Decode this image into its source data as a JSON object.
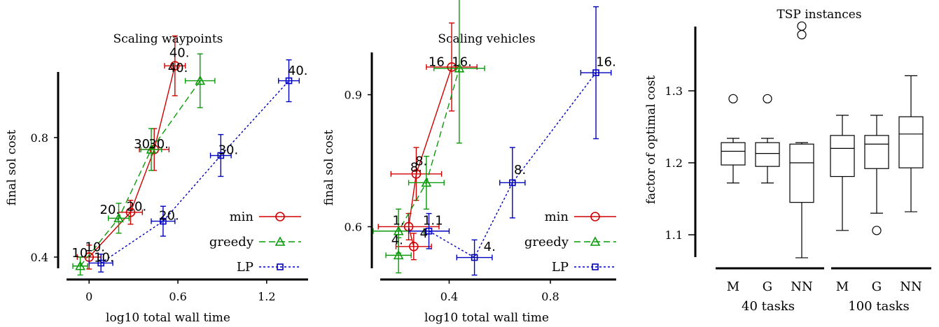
{
  "chart_data": [
    {
      "type": "scatter",
      "title": "Scaling waypoints",
      "xlabel": "log10 total wall time",
      "ylabel": "final sol cost",
      "xticks": [
        "0",
        "0.6",
        "1.2"
      ],
      "yticks": [
        "0.4",
        "0.8"
      ],
      "legend_position": "bottom-right",
      "series": [
        {
          "name": "min",
          "color": "#d00000",
          "marker": "circle",
          "line": "solid",
          "points": [
            {
              "x": 0.0,
              "y": 0.4,
              "xerr": 0.08,
              "yerr": 0.04,
              "label": "10."
            },
            {
              "x": 0.28,
              "y": 0.55,
              "xerr": 0.08,
              "yerr": 0.04,
              "label": "20."
            },
            {
              "x": 0.44,
              "y": 0.76,
              "xerr": 0.1,
              "yerr": 0.07,
              "label": "30."
            },
            {
              "x": 0.58,
              "y": 1.04,
              "xerr": 0.07,
              "yerr": 0.1,
              "label": "40."
            }
          ]
        },
        {
          "name": "greedy",
          "color": "#0a9a0a",
          "marker": "triangle",
          "line": "dashed",
          "points": [
            {
              "x": -0.06,
              "y": 0.37,
              "xerr": 0.05,
              "yerr": 0.03,
              "label": ""
            },
            {
              "x": 0.2,
              "y": 0.53,
              "xerr": 0.07,
              "yerr": 0.05,
              "label": ""
            },
            {
              "x": 0.42,
              "y": 0.76,
              "xerr": 0.07,
              "yerr": 0.07,
              "label": ""
            },
            {
              "x": 0.75,
              "y": 0.99,
              "xerr": 0.1,
              "yerr": 0.09,
              "label": ""
            }
          ]
        },
        {
          "name": "LP",
          "color": "#0000c0",
          "marker": "square",
          "line": "dotted",
          "points": [
            {
              "x": 0.08,
              "y": 0.38,
              "xerr": 0.08,
              "yerr": 0.03,
              "label": ""
            },
            {
              "x": 0.5,
              "y": 0.52,
              "xerr": 0.08,
              "yerr": 0.05,
              "label": ""
            },
            {
              "x": 0.89,
              "y": 0.74,
              "xerr": 0.07,
              "yerr": 0.07,
              "label": ""
            },
            {
              "x": 1.35,
              "y": 0.99,
              "xerr": 0.07,
              "yerr": 0.07,
              "label": "40."
            }
          ]
        }
      ],
      "annotations": [
        {
          "text": "10.",
          "x": -0.05,
          "y": 0.4
        },
        {
          "text": "10.",
          "x": 0.04,
          "y": 0.42
        },
        {
          "text": "10.",
          "x": 0.1,
          "y": 0.385
        },
        {
          "text": "20.",
          "x": 0.14,
          "y": 0.545
        },
        {
          "text": "20.",
          "x": 0.32,
          "y": 0.555
        },
        {
          "text": "20.",
          "x": 0.54,
          "y": 0.525
        },
        {
          "text": "30.",
          "x": 0.37,
          "y": 0.765
        },
        {
          "text": "30.",
          "x": 0.47,
          "y": 0.765
        },
        {
          "text": "30.",
          "x": 0.94,
          "y": 0.745
        },
        {
          "text": "40.",
          "x": 0.61,
          "y": 1.07
        },
        {
          "text": "40.",
          "x": 0.6,
          "y": 1.02
        },
        {
          "text": "40.",
          "x": 1.41,
          "y": 1.01
        }
      ]
    },
    {
      "type": "scatter",
      "title": "Scaling vehicles",
      "xlabel": "log10 total wall time",
      "ylabel": "final sol cost",
      "xticks": [
        "0.4",
        "0.8"
      ],
      "yticks": [
        "0.6",
        "0.9"
      ],
      "legend_position": "bottom-right",
      "series": [
        {
          "name": "min",
          "color": "#d00000",
          "marker": "circle",
          "line": "solid",
          "points": [
            {
              "x": 0.26,
              "y": 0.555,
              "xerr": 0.07,
              "yerr": 0.03,
              "label": ""
            },
            {
              "x": 0.24,
              "y": 0.6,
              "xerr": 0.12,
              "yerr": 0.03,
              "label": ""
            },
            {
              "x": 0.27,
              "y": 0.72,
              "xerr": 0.1,
              "yerr": 0.06,
              "label": ""
            },
            {
              "x": 0.41,
              "y": 0.963,
              "xerr": 0.1,
              "yerr": 0.1,
              "label": ""
            }
          ]
        },
        {
          "name": "greedy",
          "color": "#0a9a0a",
          "marker": "triangle",
          "line": "dashed",
          "points": [
            {
              "x": 0.2,
              "y": 0.535,
              "xerr": 0.05,
              "yerr": 0.04,
              "label": ""
            },
            {
              "x": 0.2,
              "y": 0.59,
              "xerr": 0.1,
              "yerr": 0.05,
              "label": ""
            },
            {
              "x": 0.31,
              "y": 0.7,
              "xerr": 0.07,
              "yerr": 0.06,
              "label": ""
            },
            {
              "x": 0.44,
              "y": 0.96,
              "xerr": 0.1,
              "yerr": 0.17,
              "label": ""
            }
          ]
        },
        {
          "name": "LP",
          "color": "#0000c0",
          "marker": "square",
          "line": "dotted",
          "points": [
            {
              "x": 0.32,
              "y": 0.59,
              "xerr": 0.08,
              "yerr": 0.04,
              "label": ""
            },
            {
              "x": 0.5,
              "y": 0.53,
              "xerr": 0.07,
              "yerr": 0.04,
              "label": ""
            },
            {
              "x": 0.65,
              "y": 0.7,
              "xerr": 0.05,
              "yerr": 0.08,
              "label": ""
            },
            {
              "x": 0.98,
              "y": 0.95,
              "xerr": 0.06,
              "yerr": 0.15,
              "label": ""
            }
          ]
        }
      ],
      "annotations": [
        {
          "text": "1.",
          "x": 0.2,
          "y": 0.605
        },
        {
          "text": "1.",
          "x": 0.32,
          "y": 0.605
        },
        {
          "text": "1",
          "x": 0.36,
          "y": 0.605
        },
        {
          "text": "4.",
          "x": 0.195,
          "y": 0.56
        },
        {
          "text": "4",
          "x": 0.3,
          "y": 0.575
        },
        {
          "text": "4.",
          "x": 0.56,
          "y": 0.545
        },
        {
          "text": "8.",
          "x": 0.27,
          "y": 0.725
        },
        {
          "text": "8.",
          "x": 0.29,
          "y": 0.74
        },
        {
          "text": "8.",
          "x": 0.68,
          "y": 0.72
        },
        {
          "text": "16",
          "x": 0.35,
          "y": 0.965
        },
        {
          "text": "16.",
          "x": 0.45,
          "y": 0.965
        },
        {
          "text": "16.",
          "x": 1.02,
          "y": 0.965
        }
      ]
    },
    {
      "type": "box",
      "title": "TSP instances",
      "ylabel": "factor of optimal cost",
      "yticks": [
        "1.1",
        "1.2",
        "1.3"
      ],
      "groups": [
        "40 tasks",
        "100 tasks"
      ],
      "categories": [
        "M",
        "G",
        "NN",
        "M",
        "G",
        "NN"
      ],
      "boxes": [
        {
          "category": "M",
          "group": "40 tasks",
          "whisker_low": 1.172,
          "q1": 1.197,
          "median": 1.216,
          "q3": 1.228,
          "whisker_high": 1.234,
          "outliers": [
            1.289
          ]
        },
        {
          "category": "G",
          "group": "40 tasks",
          "whisker_low": 1.172,
          "q1": 1.195,
          "median": 1.213,
          "q3": 1.228,
          "whisker_high": 1.234,
          "outliers": [
            1.289
          ]
        },
        {
          "category": "NN",
          "group": "40 tasks",
          "whisker_low": 1.068,
          "q1": 1.145,
          "median": 1.2,
          "q3": 1.226,
          "whisker_high": 1.228,
          "outliers": [
            1.378,
            1.39
          ]
        },
        {
          "category": "M",
          "group": "100 tasks",
          "whisker_low": 1.106,
          "q1": 1.181,
          "median": 1.22,
          "q3": 1.238,
          "whisker_high": 1.266,
          "outliers": []
        },
        {
          "category": "G",
          "group": "100 tasks",
          "whisker_low": 1.13,
          "q1": 1.192,
          "median": 1.226,
          "q3": 1.238,
          "whisker_high": 1.266,
          "outliers": [
            1.106
          ]
        },
        {
          "category": "NN",
          "group": "100 tasks",
          "whisker_low": 1.132,
          "q1": 1.193,
          "median": 1.24,
          "q3": 1.264,
          "whisker_high": 1.321,
          "outliers": []
        }
      ]
    }
  ]
}
